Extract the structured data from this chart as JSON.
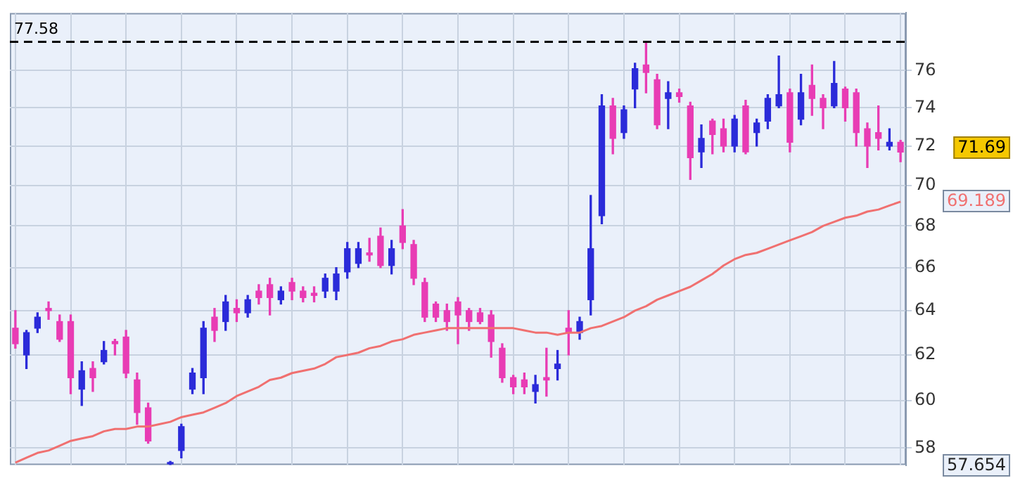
{
  "chart_data": {
    "type": "candlestick",
    "categories": [
      null,
      null,
      null,
      null,
      null,
      null,
      null,
      null,
      null,
      null,
      null,
      null,
      null,
      null,
      null,
      null,
      null,
      null,
      null,
      null,
      null,
      null,
      null,
      null,
      null,
      null,
      null,
      null,
      null,
      null,
      null,
      null,
      null,
      null,
      null,
      null,
      null,
      null,
      null,
      null,
      null,
      null,
      null,
      null,
      null,
      null,
      null,
      null,
      null,
      null,
      null,
      null,
      null,
      null,
      null,
      null,
      null,
      null,
      null,
      null,
      null,
      null,
      null,
      null,
      null,
      null,
      null,
      null,
      null,
      null,
      null,
      null,
      null,
      null,
      null,
      null,
      null,
      null,
      null,
      null,
      null
    ],
    "ohlc": [
      [
        63.2,
        64.0,
        62.3,
        62.5
      ],
      [
        62.0,
        63.1,
        61.4,
        63.0
      ],
      [
        63.2,
        63.9,
        63.0,
        63.7
      ],
      [
        64.1,
        64.4,
        63.6,
        64.0
      ],
      [
        63.5,
        63.8,
        62.6,
        62.7
      ],
      [
        63.5,
        63.8,
        60.3,
        61.0
      ],
      [
        60.5,
        61.7,
        59.8,
        61.3
      ],
      [
        61.4,
        61.7,
        60.4,
        61.0
      ],
      [
        61.7,
        62.6,
        61.6,
        62.2
      ],
      [
        62.6,
        62.7,
        62.0,
        62.5
      ],
      [
        62.8,
        63.1,
        61.0,
        61.2
      ],
      [
        60.9,
        61.2,
        59.0,
        59.5
      ],
      [
        59.7,
        59.9,
        58.2,
        58.3
      ],
      null,
      [
        57.35,
        57.45,
        57.3,
        57.4
      ],
      [
        57.9,
        59.0,
        57.6,
        58.9
      ],
      [
        60.5,
        61.4,
        60.3,
        61.2
      ],
      [
        61.0,
        63.5,
        60.3,
        63.2
      ],
      [
        63.7,
        64.1,
        62.6,
        63.1
      ],
      [
        63.5,
        64.7,
        63.1,
        64.4
      ],
      [
        64.1,
        64.5,
        63.5,
        63.9
      ],
      [
        63.9,
        64.7,
        63.7,
        64.5
      ],
      [
        64.9,
        65.2,
        64.3,
        64.6
      ],
      [
        65.2,
        65.5,
        63.8,
        64.6
      ],
      [
        64.5,
        65.1,
        64.3,
        64.9
      ],
      [
        65.3,
        65.5,
        64.5,
        64.9
      ],
      [
        64.9,
        65.1,
        64.4,
        64.6
      ],
      [
        64.8,
        65.1,
        64.4,
        64.7
      ],
      [
        64.9,
        65.7,
        64.6,
        65.5
      ],
      [
        64.9,
        66.0,
        64.5,
        65.7
      ],
      [
        65.8,
        67.2,
        65.5,
        66.9
      ],
      [
        66.2,
        67.2,
        66.0,
        66.9
      ],
      [
        66.7,
        67.4,
        66.3,
        66.6
      ],
      [
        67.5,
        67.9,
        66.0,
        66.1
      ],
      [
        66.1,
        67.3,
        65.7,
        66.9
      ],
      [
        68.0,
        68.8,
        66.9,
        67.2
      ],
      [
        67.1,
        67.3,
        65.2,
        65.5
      ],
      [
        65.3,
        65.5,
        63.5,
        63.7
      ],
      [
        64.3,
        64.4,
        63.5,
        63.7
      ],
      [
        64.0,
        64.3,
        63.1,
        63.5
      ],
      [
        64.4,
        64.6,
        62.5,
        63.8
      ],
      [
        64.0,
        64.1,
        63.1,
        63.5
      ],
      [
        63.9,
        64.1,
        63.4,
        63.5
      ],
      [
        63.8,
        64.0,
        61.9,
        62.6
      ],
      [
        62.3,
        62.5,
        60.8,
        61.0
      ],
      [
        61.0,
        61.1,
        60.3,
        60.6
      ],
      [
        60.9,
        61.2,
        60.3,
        60.6
      ],
      [
        60.4,
        61.1,
        59.9,
        60.7
      ],
      [
        61.0,
        62.3,
        60.2,
        60.9
      ],
      [
        61.4,
        62.2,
        60.9,
        61.6
      ],
      [
        63.2,
        64.0,
        62.0,
        63.0
      ],
      [
        63.0,
        63.7,
        62.7,
        63.5
      ],
      [
        64.5,
        69.5,
        63.8,
        66.9
      ],
      [
        68.5,
        74.7,
        68.1,
        74.1
      ],
      [
        74.1,
        74.5,
        71.6,
        72.4
      ],
      [
        72.7,
        74.1,
        72.4,
        73.9
      ],
      [
        75.0,
        76.4,
        74.0,
        76.1
      ],
      [
        76.3,
        77.58,
        74.8,
        75.9
      ],
      [
        75.5,
        75.8,
        72.9,
        73.1
      ],
      [
        74.5,
        75.4,
        72.9,
        74.8
      ],
      [
        74.8,
        75.0,
        74.3,
        74.6
      ],
      [
        74.1,
        74.3,
        70.3,
        71.4
      ],
      [
        71.7,
        73.1,
        70.9,
        72.4
      ],
      [
        73.3,
        73.4,
        71.6,
        72.6
      ],
      [
        72.9,
        73.4,
        71.7,
        72.0
      ],
      [
        72.0,
        73.6,
        71.7,
        73.4
      ],
      [
        74.1,
        74.4,
        71.6,
        71.7
      ],
      [
        72.7,
        73.4,
        72.0,
        73.2
      ],
      [
        73.3,
        74.7,
        72.9,
        74.5
      ],
      [
        74.1,
        76.8,
        74.0,
        74.7
      ],
      [
        74.8,
        75.0,
        71.7,
        72.2
      ],
      [
        73.4,
        75.8,
        73.1,
        74.8
      ],
      [
        75.2,
        76.3,
        73.6,
        74.5
      ],
      [
        74.5,
        74.7,
        72.9,
        74.0
      ],
      [
        74.1,
        76.5,
        74.0,
        75.3
      ],
      [
        75.0,
        75.1,
        73.3,
        74.0
      ],
      [
        74.8,
        75.0,
        72.0,
        72.7
      ],
      [
        72.9,
        73.2,
        70.9,
        72.0
      ],
      [
        72.7,
        74.1,
        71.8,
        72.4
      ],
      [
        72.0,
        72.9,
        71.8,
        72.2
      ],
      [
        72.2,
        72.3,
        71.2,
        71.69
      ]
    ],
    "colors": [
      "#e83cb4",
      "#2b2bd9",
      "#2b2bd9",
      "#e83cb4",
      "#e83cb4",
      "#e83cb4",
      "#2b2bd9",
      "#e83cb4",
      "#2b2bd9",
      "#e83cb4",
      "#e83cb4",
      "#e83cb4",
      "#e83cb4",
      null,
      "#2b2bd9",
      "#2b2bd9",
      "#2b2bd9",
      "#2b2bd9",
      "#e83cb4",
      "#2b2bd9",
      "#e83cb4",
      "#2b2bd9",
      "#e83cb4",
      "#e83cb4",
      "#2b2bd9",
      "#e83cb4",
      "#e83cb4",
      "#e83cb4",
      "#2b2bd9",
      "#2b2bd9",
      "#2b2bd9",
      "#2b2bd9",
      "#e83cb4",
      "#e83cb4",
      "#2b2bd9",
      "#e83cb4",
      "#e83cb4",
      "#e83cb4",
      "#e83cb4",
      "#e83cb4",
      "#e83cb4",
      "#e83cb4",
      "#e83cb4",
      "#e83cb4",
      "#e83cb4",
      "#e83cb4",
      "#e83cb4",
      "#2b2bd9",
      "#e83cb4",
      "#2b2bd9",
      "#e83cb4",
      "#2b2bd9",
      "#2b2bd9",
      "#2b2bd9",
      "#e83cb4",
      "#2b2bd9",
      "#2b2bd9",
      "#e83cb4",
      "#e83cb4",
      "#2b2bd9",
      "#e83cb4",
      "#e83cb4",
      "#2b2bd9",
      "#e83cb4",
      "#e83cb4",
      "#2b2bd9",
      "#e83cb4",
      "#2b2bd9",
      "#2b2bd9",
      "#2b2bd9",
      "#e83cb4",
      "#2b2bd9",
      "#e83cb4",
      "#e83cb4",
      "#2b2bd9",
      "#e83cb4",
      "#e83cb4",
      "#e83cb4",
      "#e83cb4",
      "#2b2bd9",
      "#e83cb4"
    ],
    "series": [
      {
        "type": "line",
        "color": "#f07070",
        "values": [
          57.4,
          57.6,
          57.8,
          57.9,
          58.1,
          58.3,
          58.4,
          58.5,
          58.7,
          58.8,
          58.8,
          58.9,
          58.9,
          59.0,
          59.1,
          59.3,
          59.4,
          59.5,
          59.7,
          59.9,
          60.2,
          60.4,
          60.6,
          60.9,
          61.0,
          61.2,
          61.3,
          61.4,
          61.6,
          61.9,
          62.0,
          62.1,
          62.3,
          62.4,
          62.6,
          62.7,
          62.9,
          63.0,
          63.1,
          63.2,
          63.2,
          63.2,
          63.2,
          63.2,
          63.2,
          63.2,
          63.1,
          63.0,
          63.0,
          62.9,
          63.0,
          63.0,
          63.2,
          63.3,
          63.5,
          63.7,
          64.0,
          64.2,
          64.5,
          64.7,
          64.9,
          65.1,
          65.4,
          65.7,
          66.1,
          66.4,
          66.6,
          66.7,
          66.9,
          67.1,
          67.3,
          67.5,
          67.7,
          68.0,
          68.2,
          68.4,
          68.5,
          68.7,
          68.8,
          69.0,
          69.189
        ]
      }
    ],
    "ylim": [
      57.3,
      79.2
    ],
    "yticks": [
      58,
      60,
      62,
      64,
      66,
      68,
      70,
      72,
      74,
      76
    ],
    "log": true,
    "grid": true,
    "marker": "none",
    "line_style": "solid",
    "tick_labels": "y",
    "ref_lines": [
      {
        "axis": "y",
        "value": 77.58,
        "label": "77.58",
        "color": "#000000",
        "line_style": "dashed"
      }
    ],
    "annotations": [
      "71.69",
      "69.189",
      "57.654"
    ]
  }
}
